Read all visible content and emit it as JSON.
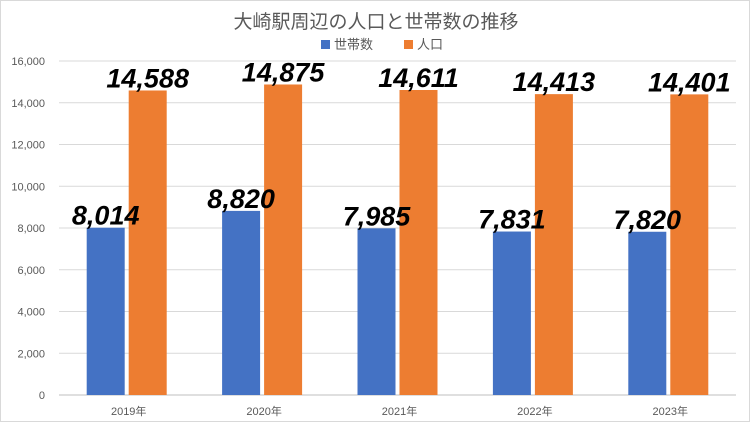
{
  "chart_data": {
    "type": "bar",
    "title": "大崎駅周辺の人口と世帯数の推移",
    "categories": [
      "2019年",
      "2020年",
      "2021年",
      "2022年",
      "2023年"
    ],
    "series": [
      {
        "name": "世帯数",
        "color": "#4472C4",
        "values": [
          8014,
          8820,
          7985,
          7831,
          7820
        ],
        "labels": [
          "8,014",
          "8,820",
          "7,985",
          "7,831",
          "7,820"
        ]
      },
      {
        "name": "人口",
        "color": "#ED7D31",
        "values": [
          14588,
          14875,
          14611,
          14413,
          14401
        ],
        "labels": [
          "14,588",
          "14,875",
          "14,611",
          "14,413",
          "14,401"
        ]
      }
    ],
    "ylim": [
      0,
      16000
    ],
    "yticks": [
      0,
      2000,
      4000,
      6000,
      8000,
      10000,
      12000,
      14000,
      16000
    ],
    "ytick_labels": [
      "0",
      "2,000",
      "4,000",
      "6,000",
      "8,000",
      "10,000",
      "12,000",
      "14,000",
      "16,000"
    ],
    "grid": true,
    "legend_position": "top-center",
    "xlabel": "",
    "ylabel": ""
  }
}
